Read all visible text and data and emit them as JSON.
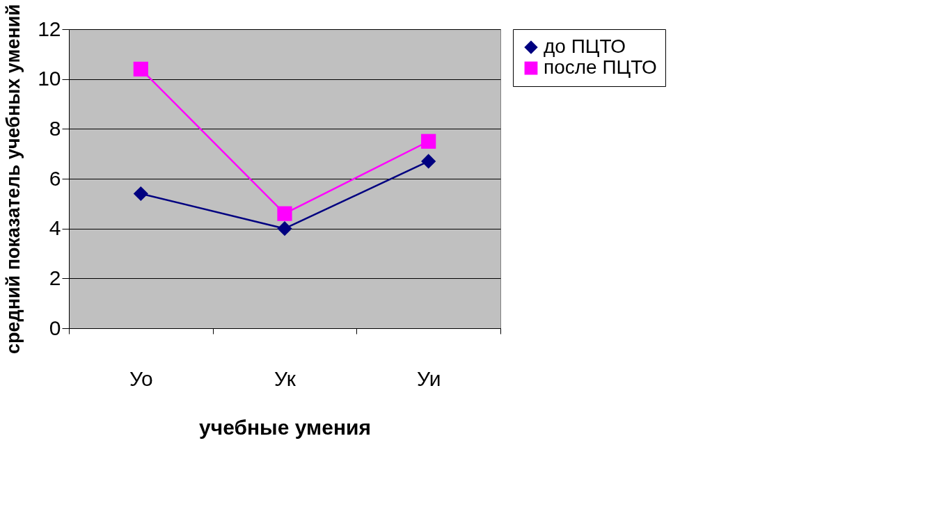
{
  "chart_data": {
    "type": "line",
    "xlabel": "учебные умения",
    "ylabel": "средний показатель учебных умений",
    "categories": [
      "Уо",
      "Ук",
      "Уи"
    ],
    "series": [
      {
        "name": "до ПЦТО",
        "color": "#000080",
        "marker": "diamond",
        "values": [
          5.4,
          4.0,
          6.7
        ]
      },
      {
        "name": "после ПЦТО",
        "color": "#ff00ff",
        "marker": "square",
        "values": [
          10.4,
          4.6,
          7.5
        ]
      }
    ],
    "ylim": [
      0,
      12
    ],
    "yticks": [
      0,
      2,
      4,
      6,
      8,
      10,
      12
    ],
    "grid": "y",
    "legend": "right"
  }
}
